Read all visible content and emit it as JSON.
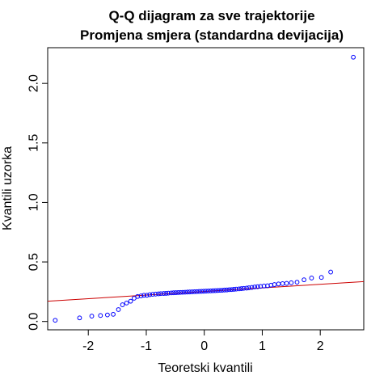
{
  "chart_data": {
    "type": "scatter",
    "title": "Q-Q dijagram za sve trajektorije",
    "subtitle": "Promjena smjera (standardna devijacija)",
    "xlabel": "Teoretski kvantili",
    "ylabel": "Kvantili uzorka",
    "xlim": [
      -2.7,
      2.75
    ],
    "ylim": [
      -0.07,
      2.3
    ],
    "x_ticks": [
      -2,
      -1,
      0,
      1,
      2
    ],
    "x_tick_labels": [
      "-2",
      "-1",
      "0",
      "1",
      "2"
    ],
    "y_ticks": [
      0.0,
      0.5,
      1.0,
      1.5,
      2.0
    ],
    "y_tick_labels": [
      "0.0",
      "0.5",
      "1.0",
      "1.5",
      "2.0"
    ],
    "grid": false,
    "point_color": "#0000ff",
    "line_color": "#cc0000",
    "reference_line": {
      "x1": -2.7,
      "y1": 0.17,
      "x2": 2.75,
      "y2": 0.335
    },
    "points": [
      {
        "x": -2.57,
        "y": 0.01
      },
      {
        "x": -2.15,
        "y": 0.03
      },
      {
        "x": -1.94,
        "y": 0.045
      },
      {
        "x": -1.79,
        "y": 0.05
      },
      {
        "x": -1.67,
        "y": 0.055
      },
      {
        "x": -1.57,
        "y": 0.06
      },
      {
        "x": -1.48,
        "y": 0.1
      },
      {
        "x": -1.41,
        "y": 0.14
      },
      {
        "x": -1.34,
        "y": 0.155
      },
      {
        "x": -1.27,
        "y": 0.17
      },
      {
        "x": -1.21,
        "y": 0.195
      },
      {
        "x": -1.15,
        "y": 0.21
      },
      {
        "x": -1.09,
        "y": 0.215
      },
      {
        "x": -1.04,
        "y": 0.22
      },
      {
        "x": -0.99,
        "y": 0.22
      },
      {
        "x": -0.94,
        "y": 0.225
      },
      {
        "x": -0.89,
        "y": 0.228
      },
      {
        "x": -0.84,
        "y": 0.23
      },
      {
        "x": -0.79,
        "y": 0.232
      },
      {
        "x": -0.75,
        "y": 0.234
      },
      {
        "x": -0.7,
        "y": 0.235
      },
      {
        "x": -0.66,
        "y": 0.236
      },
      {
        "x": -0.62,
        "y": 0.238
      },
      {
        "x": -0.57,
        "y": 0.24
      },
      {
        "x": -0.53,
        "y": 0.241
      },
      {
        "x": -0.49,
        "y": 0.242
      },
      {
        "x": -0.45,
        "y": 0.243
      },
      {
        "x": -0.41,
        "y": 0.244
      },
      {
        "x": -0.37,
        "y": 0.245
      },
      {
        "x": -0.33,
        "y": 0.246
      },
      {
        "x": -0.29,
        "y": 0.247
      },
      {
        "x": -0.25,
        "y": 0.248
      },
      {
        "x": -0.21,
        "y": 0.249
      },
      {
        "x": -0.17,
        "y": 0.25
      },
      {
        "x": -0.13,
        "y": 0.251
      },
      {
        "x": -0.09,
        "y": 0.252
      },
      {
        "x": -0.05,
        "y": 0.253
      },
      {
        "x": -0.01,
        "y": 0.254
      },
      {
        "x": 0.03,
        "y": 0.255
      },
      {
        "x": 0.07,
        "y": 0.256
      },
      {
        "x": 0.11,
        "y": 0.257
      },
      {
        "x": 0.15,
        "y": 0.258
      },
      {
        "x": 0.19,
        "y": 0.259
      },
      {
        "x": 0.23,
        "y": 0.26
      },
      {
        "x": 0.27,
        "y": 0.261
      },
      {
        "x": 0.31,
        "y": 0.262
      },
      {
        "x": 0.35,
        "y": 0.264
      },
      {
        "x": 0.39,
        "y": 0.265
      },
      {
        "x": 0.43,
        "y": 0.267
      },
      {
        "x": 0.47,
        "y": 0.268
      },
      {
        "x": 0.51,
        "y": 0.27
      },
      {
        "x": 0.55,
        "y": 0.272
      },
      {
        "x": 0.6,
        "y": 0.274
      },
      {
        "x": 0.64,
        "y": 0.276
      },
      {
        "x": 0.68,
        "y": 0.278
      },
      {
        "x": 0.73,
        "y": 0.28
      },
      {
        "x": 0.77,
        "y": 0.283
      },
      {
        "x": 0.82,
        "y": 0.286
      },
      {
        "x": 0.87,
        "y": 0.29
      },
      {
        "x": 0.92,
        "y": 0.292
      },
      {
        "x": 0.97,
        "y": 0.295
      },
      {
        "x": 1.03,
        "y": 0.298
      },
      {
        "x": 1.09,
        "y": 0.3
      },
      {
        "x": 1.15,
        "y": 0.305
      },
      {
        "x": 1.21,
        "y": 0.31
      },
      {
        "x": 1.28,
        "y": 0.315
      },
      {
        "x": 1.35,
        "y": 0.318
      },
      {
        "x": 1.42,
        "y": 0.32
      },
      {
        "x": 1.5,
        "y": 0.325
      },
      {
        "x": 1.6,
        "y": 0.33
      },
      {
        "x": 1.72,
        "y": 0.35
      },
      {
        "x": 1.85,
        "y": 0.365
      },
      {
        "x": 2.02,
        "y": 0.37
      },
      {
        "x": 2.18,
        "y": 0.415
      },
      {
        "x": 2.57,
        "y": 2.22
      }
    ]
  }
}
